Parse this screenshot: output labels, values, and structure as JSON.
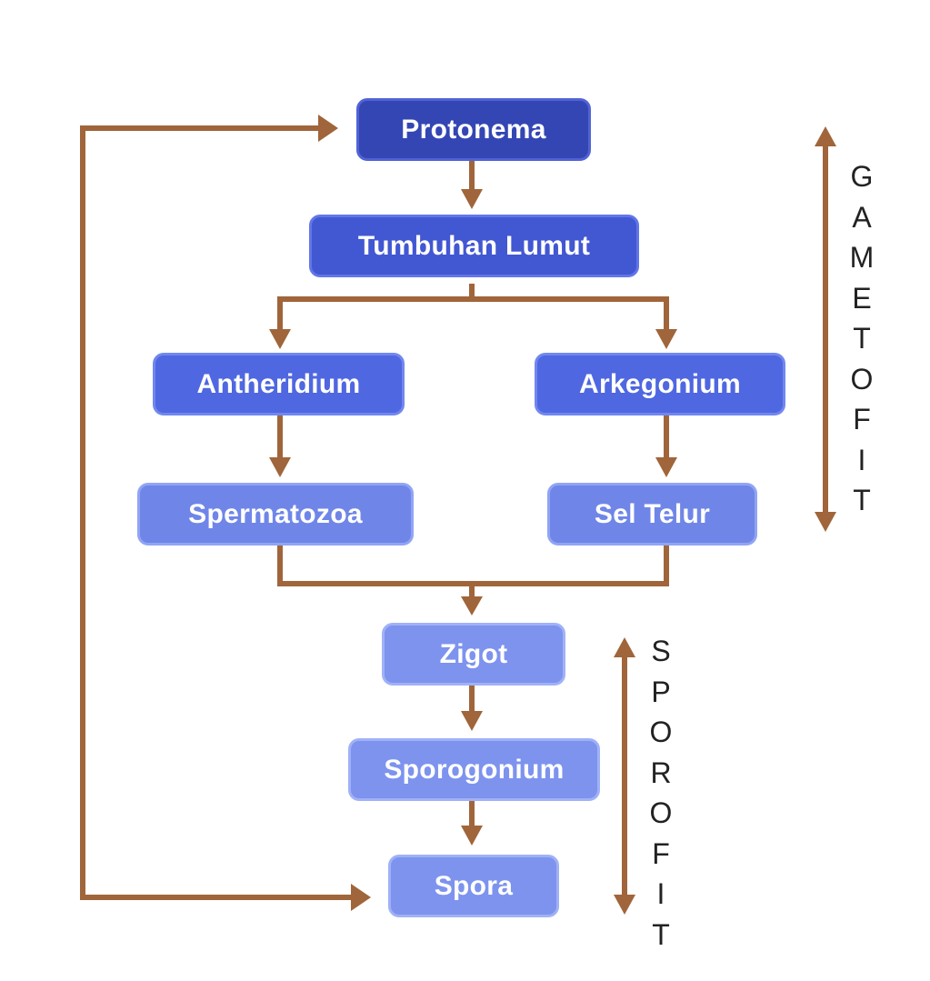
{
  "nodes": {
    "protonema": "Protonema",
    "tumbuhan_lumut": "Tumbuhan Lumut",
    "antheridium": "Antheridium",
    "arkegonium": "Arkegonium",
    "spermatozoa": "Spermatozoa",
    "sel_telur": "Sel Telur",
    "zigot": "Zigot",
    "sporogonium": "Sporogonium",
    "spora": "Spora"
  },
  "phases": {
    "gametofit": "GAMETOFIT",
    "sporofit": "SPOROFIT"
  },
  "colors": {
    "arrow": "#a0653a",
    "node_dark": "#3446b4",
    "node_light": "#7d93ee",
    "label_text": "#222222"
  }
}
